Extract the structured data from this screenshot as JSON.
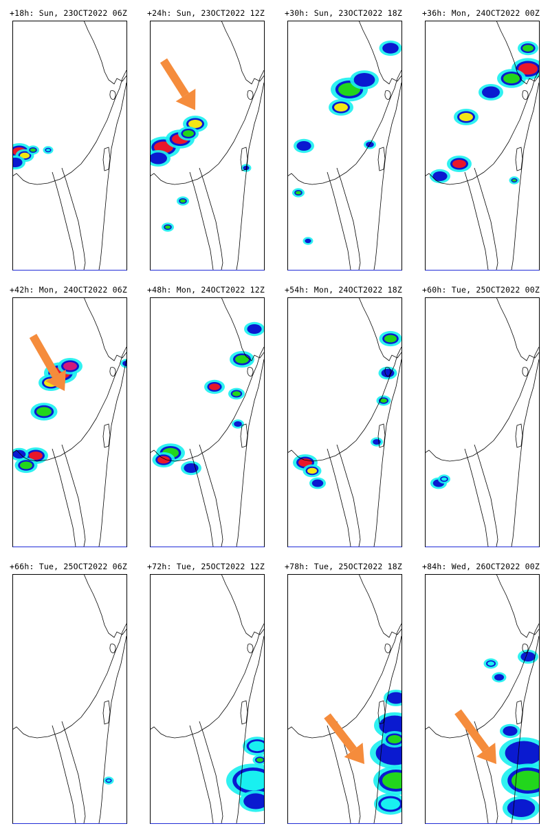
{
  "colors": {
    "coast": "#000000",
    "frame": "#000000",
    "frame_bottom": "#1f2bd6",
    "arrow": "#f58c3c",
    "precip_cyan": "#19f0f0",
    "precip_blue": "#0a1ad0",
    "precip_green": "#22d61c",
    "precip_yellow": "#f2e614",
    "precip_red": "#e8172a",
    "precip_magenta": "#d11a7a"
  },
  "panels": [
    {
      "title": "+18h: Sun, 23OCT2022 06Z",
      "arrow": false,
      "precip_level": "light"
    },
    {
      "title": "+24h: Sun, 23OCT2022 12Z",
      "arrow": true,
      "precip_level": "heavy"
    },
    {
      "title": "+30h: Sun, 23OCT2022 18Z",
      "arrow": false,
      "precip_level": "moderate"
    },
    {
      "title": "+36h: Mon, 24OCT2022 00Z",
      "arrow": false,
      "precip_level": "moderate"
    },
    {
      "title": "+42h: Mon, 24OCT2022 06Z",
      "arrow": true,
      "precip_level": "heavy"
    },
    {
      "title": "+48h: Mon, 24OCT2022 12Z",
      "arrow": false,
      "precip_level": "moderate"
    },
    {
      "title": "+54h: Mon, 24OCT2022 18Z",
      "arrow": false,
      "precip_level": "light"
    },
    {
      "title": "+60h: Tue, 25OCT2022 00Z",
      "arrow": false,
      "precip_level": "trace"
    },
    {
      "title": "+66h: Tue, 25OCT2022 06Z",
      "arrow": false,
      "precip_level": "trace"
    },
    {
      "title": "+72h: Tue, 25OCT2022 12Z",
      "arrow": false,
      "precip_level": "light"
    },
    {
      "title": "+78h: Tue, 25OCT2022 18Z",
      "arrow": true,
      "precip_level": "moderate"
    },
    {
      "title": "+84h: Wed, 26OCT2022 00Z",
      "arrow": true,
      "precip_level": "moderate"
    }
  ]
}
